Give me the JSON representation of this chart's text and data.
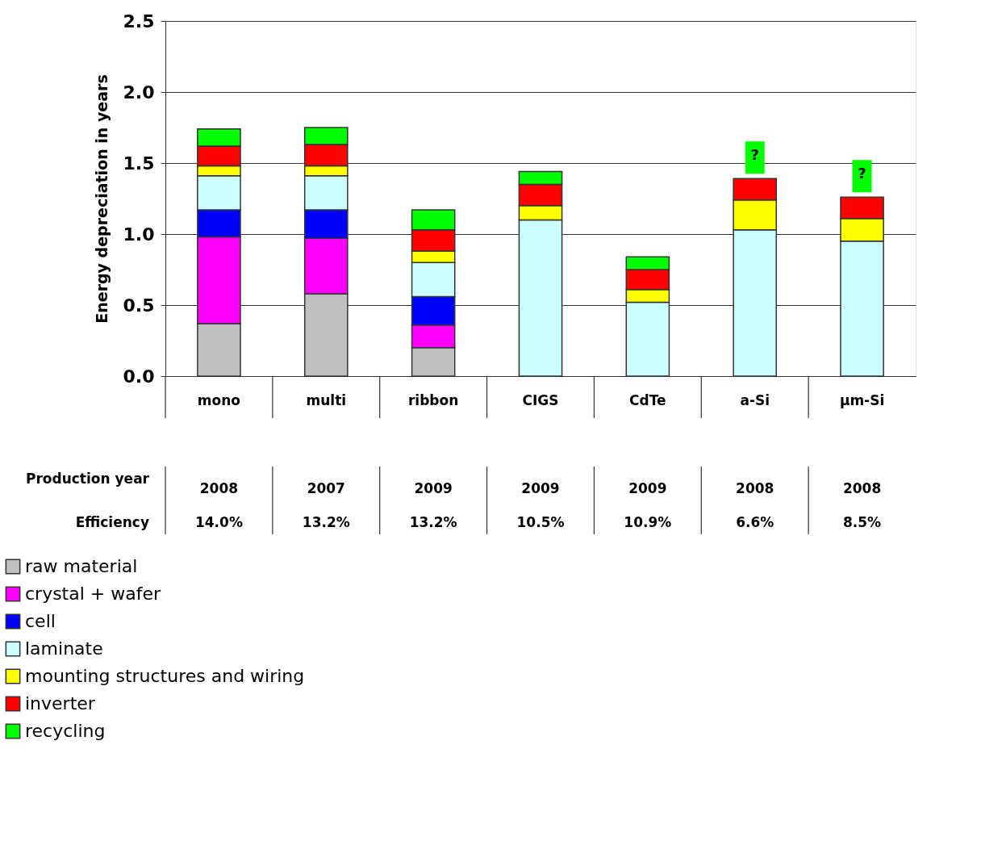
{
  "chart_data": {
    "type": "bar",
    "stacked": true,
    "ylabel": "Energy depreciation in years",
    "categories": [
      "mono",
      "multi",
      "ribbon",
      "CIGS",
      "CdTe",
      "a-Si",
      "µm-Si"
    ],
    "series": [
      {
        "name": "raw material",
        "color": "#c0c0c0",
        "values": [
          0.37,
          0.58,
          0.2,
          null,
          null,
          null,
          null
        ]
      },
      {
        "name": "crystal + wafer",
        "color": "#ff00ff",
        "values": [
          0.61,
          0.39,
          0.16,
          null,
          null,
          null,
          null
        ]
      },
      {
        "name": "cell",
        "color": "#0000ff",
        "values": [
          0.19,
          0.2,
          0.2,
          null,
          null,
          null,
          null
        ]
      },
      {
        "name": "laminate",
        "color": "#ccffff",
        "values": [
          0.24,
          0.24,
          0.24,
          1.1,
          0.52,
          1.03,
          0.95
        ]
      },
      {
        "name": "mounting structures and wiring",
        "color": "#ffff00",
        "values": [
          0.07,
          0.07,
          0.08,
          0.1,
          0.09,
          0.21,
          0.16
        ]
      },
      {
        "name": "inverter",
        "color": "#ff0000",
        "values": [
          0.14,
          0.15,
          0.15,
          0.15,
          0.14,
          0.15,
          0.15
        ]
      },
      {
        "name": "recycling",
        "color": "#00ff00",
        "values": [
          0.12,
          0.12,
          0.14,
          0.09,
          0.09,
          null,
          null
        ]
      }
    ],
    "ylim": [
      0,
      2.5
    ],
    "yticks": [
      {
        "value": 0,
        "label": "0.0"
      },
      0.5,
      {
        "value": 1,
        "label": "1.0"
      },
      1.5,
      {
        "value": 2,
        "label": "2.0"
      },
      2.5
    ],
    "grid": "y",
    "legend": "bottom left",
    "annotations": [
      "?",
      "?",
      "Production year",
      "Efficiency",
      "2008",
      "2007",
      "2009",
      "2009",
      "2009",
      "2008",
      "2008",
      "14.0%",
      "13.2%",
      "13.2%",
      "10.5%",
      "10.9%",
      "6.6%",
      "8.5%"
    ]
  }
}
